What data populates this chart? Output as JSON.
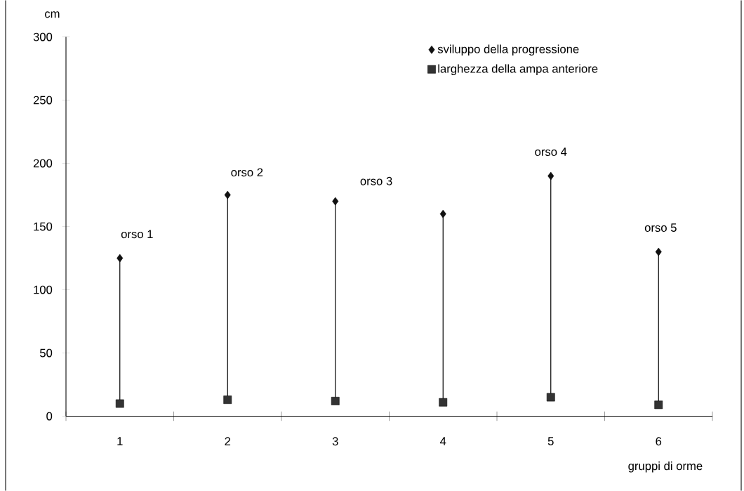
{
  "chart_data": {
    "type": "scatter",
    "categories": [
      "1",
      "2",
      "3",
      "4",
      "5",
      "6"
    ],
    "series": [
      {
        "name": "sviluppo della progressione",
        "color": "#111111",
        "marker": "diamond",
        "values": [
          125,
          175,
          170,
          160,
          190,
          130
        ]
      },
      {
        "name": "larghezza della ampa anteriore",
        "color": "#333333",
        "marker": "square",
        "values": [
          10,
          13,
          12,
          11,
          15,
          9
        ]
      }
    ],
    "xlabel": "gruppi di orme",
    "ylabel": "cm",
    "ylim": [
      0,
      300
    ],
    "yticks": [
      0,
      50,
      100,
      150,
      200,
      250,
      300
    ],
    "annotations": [
      "orso 1",
      "orso 2",
      "orso 3",
      "orso 4",
      "orso 5"
    ],
    "legend": "top right",
    "grid": false
  }
}
